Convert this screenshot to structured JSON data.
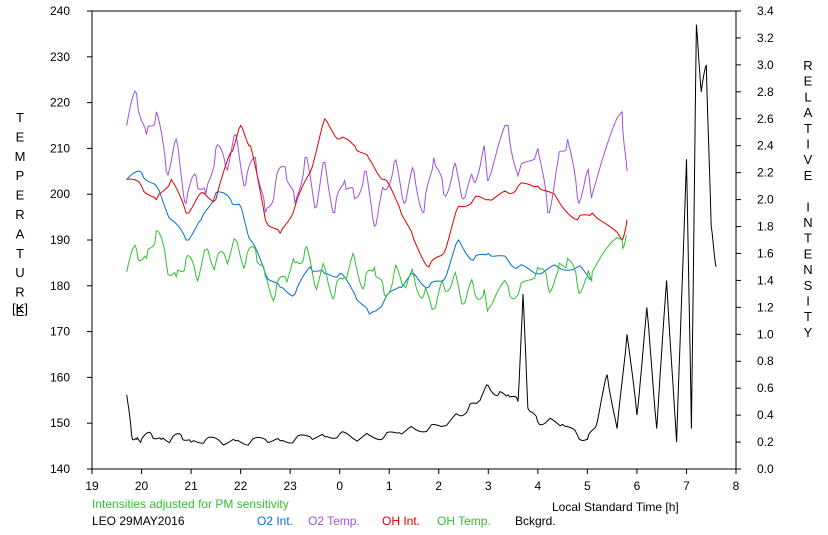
{
  "chart_data": {
    "type": "line",
    "station": "LEO 29MAY2016",
    "note": "Intensities adjusted for PM sensitivity",
    "xlabel": "Local Standard Time [h]",
    "xticks": [
      "19",
      "20",
      "21",
      "22",
      "23",
      "0",
      "1",
      "2",
      "3",
      "4",
      "5",
      "6",
      "7",
      "8"
    ],
    "xlim": [
      19,
      32
    ],
    "ylabel_left_letters": [
      "T",
      "E",
      "M",
      "P",
      "E",
      "R",
      "A",
      "T",
      "U",
      "R",
      "E"
    ],
    "ylabel_left_unit": "[K]",
    "ylim_left": [
      140,
      240
    ],
    "yticks_left": [
      "140",
      "150",
      "160",
      "170",
      "180",
      "190",
      "200",
      "210",
      "220",
      "230",
      "240"
    ],
    "ylabel_right_letters": [
      "R",
      "E",
      "L",
      "A",
      "T",
      "I",
      "V",
      "E",
      "",
      "I",
      "N",
      "T",
      "E",
      "N",
      "S",
      "I",
      "T",
      "Y"
    ],
    "ylim_right": [
      0,
      3.4
    ],
    "yticks_right": [
      "0.0",
      "0.2",
      "0.4",
      "0.6",
      "0.8",
      "1.0",
      "1.2",
      "1.4",
      "1.6",
      "1.8",
      "2.0",
      "2.2",
      "2.4",
      "2.6",
      "2.8",
      "3.0",
      "3.2",
      "3.4"
    ],
    "colors": {
      "o2_int": "#0070d0",
      "o2_temp": "#a050e0",
      "oh_int": "#e00000",
      "oh_temp": "#30c030",
      "bckgrd": "#000000",
      "note": "#30c030"
    },
    "series": [
      {
        "name": "O2 Int.",
        "axis": "right",
        "color": "#0070d0",
        "x": [
          19.7,
          20.0,
          20.3,
          20.6,
          20.9,
          21.2,
          21.5,
          21.8,
          22.0,
          22.2,
          22.5,
          22.8,
          23.1,
          23.4,
          23.7,
          24.0,
          24.3,
          24.6,
          24.9,
          25.2,
          25.5,
          25.8,
          26.1,
          26.4,
          26.7,
          27.0,
          27.4,
          27.6,
          28.0,
          28.4,
          28.8,
          29.1
        ],
        "y": [
          2.15,
          2.2,
          2.1,
          1.85,
          1.7,
          1.85,
          2.05,
          2.0,
          1.95,
          1.7,
          1.45,
          1.35,
          1.3,
          1.5,
          1.45,
          1.45,
          1.3,
          1.15,
          1.25,
          1.35,
          1.45,
          1.35,
          1.4,
          1.7,
          1.55,
          1.6,
          1.55,
          1.5,
          1.45,
          1.5,
          1.5,
          1.4
        ],
        "gaps_after": [
          3.05,
          3.5,
          4.8
        ]
      },
      {
        "name": "O2 Temp.",
        "axis": "left",
        "color": "#a050e0",
        "x": [
          19.7,
          19.9,
          20.1,
          20.3,
          20.5,
          20.7,
          20.9,
          21.1,
          21.3,
          21.5,
          21.7,
          21.9,
          22.1,
          22.3,
          22.5,
          22.7,
          22.9,
          23.1,
          23.3,
          23.5,
          23.7,
          23.9,
          24.1,
          24.3,
          24.5,
          24.7,
          24.9,
          25.1,
          25.3,
          25.5,
          25.7,
          25.9,
          26.1,
          26.3,
          26.5,
          26.7,
          26.9,
          27.0,
          27.4,
          27.6,
          28.0,
          28.2,
          28.4,
          28.6,
          28.8,
          29.0,
          29.1,
          29.7,
          29.8
        ],
        "y": [
          215,
          222,
          213,
          218,
          205,
          212,
          198,
          204,
          200,
          210,
          206,
          213,
          202,
          208,
          196,
          202,
          206,
          198,
          208,
          197,
          207,
          196,
          203,
          199,
          205,
          193,
          201,
          207,
          198,
          205,
          196,
          208,
          200,
          206,
          199,
          203,
          210,
          203,
          215,
          204,
          210,
          196,
          207,
          212,
          199,
          205,
          200,
          218,
          205
        ]
      },
      {
        "name": "OH Int.",
        "axis": "right",
        "color": "#e00000",
        "x": [
          19.7,
          20.0,
          20.3,
          20.6,
          20.9,
          21.2,
          21.5,
          21.8,
          22.0,
          22.2,
          22.5,
          22.8,
          23.1,
          23.4,
          23.7,
          24.0,
          24.3,
          24.6,
          24.9,
          25.2,
          25.5,
          25.8,
          26.1,
          26.4,
          26.7,
          27.0,
          27.4,
          27.6,
          28.0,
          28.4,
          28.8,
          29.1,
          29.7,
          29.8
        ],
        "y": [
          2.15,
          2.1,
          2.0,
          2.15,
          1.9,
          2.05,
          2.0,
          2.35,
          2.55,
          2.4,
          1.85,
          1.75,
          1.95,
          2.2,
          2.6,
          2.45,
          2.4,
          2.3,
          2.15,
          1.95,
          1.7,
          1.5,
          1.6,
          1.95,
          2.0,
          2.0,
          2.05,
          2.1,
          2.1,
          2.0,
          1.85,
          1.9,
          1.7,
          1.85
        ]
      },
      {
        "name": "OH Temp.",
        "axis": "left",
        "color": "#30c030",
        "x": [
          19.7,
          19.9,
          20.1,
          20.3,
          20.5,
          20.7,
          20.9,
          21.1,
          21.3,
          21.5,
          21.7,
          21.9,
          22.1,
          22.3,
          22.5,
          22.7,
          22.9,
          23.1,
          23.3,
          23.5,
          23.7,
          23.9,
          24.1,
          24.3,
          24.5,
          24.7,
          24.9,
          25.1,
          25.3,
          25.5,
          25.7,
          25.9,
          26.1,
          26.3,
          26.5,
          26.7,
          26.9,
          27.0,
          27.4,
          27.6,
          28.0,
          28.2,
          28.4,
          28.6,
          28.8,
          29.0,
          29.1,
          29.7,
          29.8
        ],
        "y": [
          183,
          188,
          186,
          192,
          185,
          182,
          186,
          182,
          188,
          185,
          186,
          190,
          185,
          188,
          182,
          178,
          182,
          185,
          188,
          180,
          184,
          178,
          182,
          186,
          180,
          184,
          178,
          183,
          180,
          182,
          178,
          175,
          180,
          182,
          176,
          180,
          178,
          175,
          180,
          178,
          184,
          180,
          183,
          186,
          180,
          182,
          183,
          190,
          191
        ]
      },
      {
        "name": "Bckgrd.",
        "axis": "right",
        "color": "#000000",
        "x": [
          19.7,
          19.8,
          19.9,
          20.0,
          20.2,
          20.4,
          20.6,
          20.8,
          21.0,
          21.3,
          21.6,
          21.9,
          22.2,
          22.5,
          22.8,
          23.1,
          23.4,
          23.7,
          24.0,
          24.3,
          24.6,
          24.9,
          25.2,
          25.5,
          25.8,
          26.1,
          26.4,
          26.6,
          26.8,
          27.0,
          27.2,
          27.4,
          27.6,
          27.7,
          27.8,
          28.0,
          28.2,
          28.5,
          28.8,
          29.0,
          29.2,
          29.4,
          29.6,
          29.8,
          30.0,
          30.2,
          30.4,
          30.6,
          30.8,
          31.0,
          31.1,
          31.2,
          31.3,
          31.4,
          31.5,
          31.6
        ],
        "y": [
          0.55,
          0.25,
          0.22,
          0.22,
          0.26,
          0.22,
          0.22,
          0.25,
          0.2,
          0.22,
          0.2,
          0.21,
          0.2,
          0.22,
          0.21,
          0.22,
          0.24,
          0.24,
          0.26,
          0.22,
          0.25,
          0.24,
          0.27,
          0.3,
          0.3,
          0.32,
          0.4,
          0.45,
          0.5,
          0.62,
          0.55,
          0.55,
          0.5,
          1.3,
          0.45,
          0.35,
          0.36,
          0.33,
          0.25,
          0.22,
          0.35,
          0.7,
          0.3,
          1.0,
          0.4,
          1.2,
          0.3,
          1.4,
          0.2,
          2.3,
          0.3,
          3.3,
          2.8,
          3.0,
          1.8,
          1.5
        ]
      }
    ]
  }
}
